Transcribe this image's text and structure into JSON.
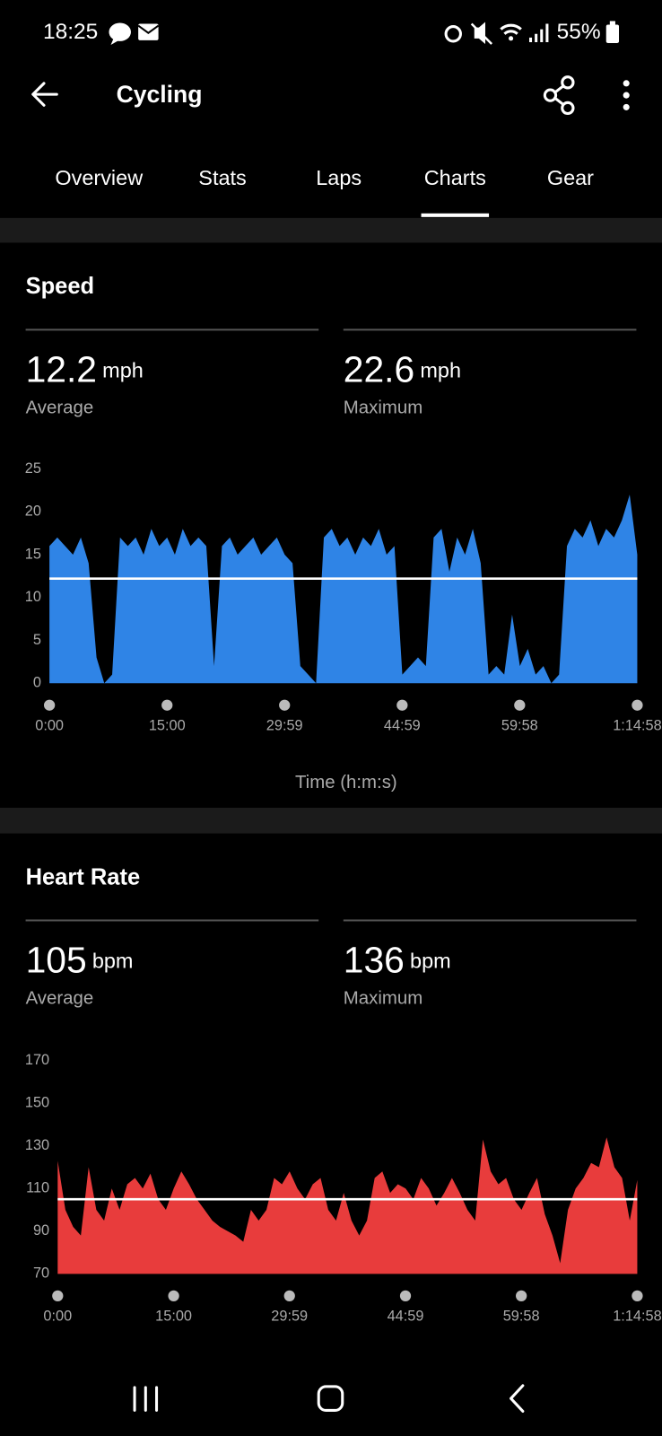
{
  "status_bar": {
    "time": "18:25",
    "battery": "55%"
  },
  "header": {
    "title": "Cycling"
  },
  "tabs": [
    "Overview",
    "Stats",
    "Laps",
    "Charts",
    "Gear"
  ],
  "active_tab": 3,
  "sections": [
    {
      "title": "Speed",
      "stats": [
        {
          "value": 12.2,
          "unit": "mph",
          "label": "Average"
        },
        {
          "value": 22.6,
          "unit": "mph",
          "label": "Maximum"
        }
      ]
    },
    {
      "title": "Heart Rate",
      "stats": [
        {
          "value": 105,
          "unit": "bpm",
          "label": "Average"
        },
        {
          "value": 136,
          "unit": "bpm",
          "label": "Maximum"
        }
      ]
    }
  ],
  "chart_data": [
    {
      "type": "area",
      "color": "#2f84e6",
      "xlabel": "Time (h:m:s)",
      "x": [
        0,
        60,
        120,
        180,
        240,
        300,
        360,
        420,
        480,
        540,
        600,
        660,
        720,
        780,
        840,
        900,
        960,
        1020,
        1080,
        1140,
        1200,
        1260,
        1320,
        1380,
        1440,
        1500,
        1560,
        1620,
        1680,
        1740,
        1800,
        1860,
        1920,
        1980,
        2040,
        2100,
        2160,
        2220,
        2280,
        2340,
        2400,
        2460,
        2520,
        2580,
        2640,
        2700,
        2760,
        2820,
        2880,
        2940,
        3000,
        3060,
        3120,
        3180,
        3240,
        3300,
        3360,
        3420,
        3480,
        3540,
        3600,
        3660,
        3720,
        3780,
        3840,
        3900,
        3960,
        4020,
        4080,
        4140,
        4200,
        4260,
        4320,
        4380,
        4440,
        4498
      ],
      "values": [
        16,
        17,
        16,
        15,
        17,
        14,
        3,
        0,
        1,
        17,
        16,
        17,
        15,
        18,
        16,
        17,
        15,
        18,
        16,
        17,
        16,
        2,
        16,
        17,
        15,
        16,
        17,
        15,
        16,
        17,
        15,
        14,
        2,
        1,
        0,
        17,
        18,
        16,
        17,
        15,
        17,
        16,
        18,
        15,
        16,
        1,
        2,
        3,
        2,
        17,
        18,
        13,
        17,
        15,
        18,
        14,
        1,
        2,
        1,
        8,
        2,
        4,
        1,
        2,
        0,
        1,
        16,
        18,
        17,
        19,
        16,
        18,
        17,
        19,
        22,
        15
      ],
      "xlim": [
        0,
        4498
      ],
      "ylim": [
        0,
        25
      ],
      "yticks": [
        0,
        5,
        10,
        15,
        20,
        25
      ],
      "xticks": [
        {
          "value": 0,
          "label": "0:00"
        },
        {
          "value": 900,
          "label": "15:00"
        },
        {
          "value": 1799,
          "label": "29:59"
        },
        {
          "value": 2699,
          "label": "44:59"
        },
        {
          "value": 3598,
          "label": "59:58"
        },
        {
          "value": 4498,
          "label": "1:14:58"
        }
      ]
    },
    {
      "type": "area",
      "color": "#e83c3c",
      "x": [
        0,
        60,
        120,
        180,
        240,
        300,
        360,
        420,
        480,
        540,
        600,
        660,
        720,
        780,
        840,
        900,
        960,
        1020,
        1080,
        1140,
        1200,
        1260,
        1320,
        1380,
        1440,
        1500,
        1560,
        1620,
        1680,
        1740,
        1800,
        1860,
        1920,
        1980,
        2040,
        2100,
        2160,
        2220,
        2280,
        2340,
        2400,
        2460,
        2520,
        2580,
        2640,
        2700,
        2760,
        2820,
        2880,
        2940,
        3000,
        3060,
        3120,
        3180,
        3240,
        3300,
        3360,
        3420,
        3480,
        3540,
        3600,
        3660,
        3720,
        3780,
        3840,
        3900,
        3960,
        4020,
        4080,
        4140,
        4200,
        4260,
        4320,
        4380,
        4440,
        4498
      ],
      "values": [
        123,
        100,
        92,
        88,
        120,
        100,
        95,
        110,
        100,
        112,
        115,
        110,
        117,
        105,
        100,
        110,
        118,
        112,
        105,
        100,
        95,
        92,
        90,
        88,
        85,
        100,
        95,
        100,
        115,
        112,
        118,
        110,
        105,
        112,
        115,
        100,
        95,
        108,
        95,
        88,
        95,
        115,
        118,
        108,
        112,
        110,
        105,
        115,
        110,
        102,
        108,
        115,
        108,
        100,
        95,
        133,
        118,
        112,
        115,
        105,
        100,
        108,
        115,
        98,
        88,
        75,
        100,
        110,
        115,
        122,
        120,
        134,
        120,
        115,
        95,
        114
      ],
      "xlim": [
        0,
        4498
      ],
      "ylim": [
        70,
        170
      ],
      "yticks": [
        70,
        90,
        110,
        130,
        150,
        170
      ],
      "xticks": [
        {
          "value": 0,
          "label": "0:00"
        },
        {
          "value": 900,
          "label": "15:00"
        },
        {
          "value": 1799,
          "label": "29:59"
        },
        {
          "value": 2699,
          "label": "44:59"
        },
        {
          "value": 3598,
          "label": "59:58"
        },
        {
          "value": 4498,
          "label": "1:14:58"
        }
      ]
    }
  ]
}
